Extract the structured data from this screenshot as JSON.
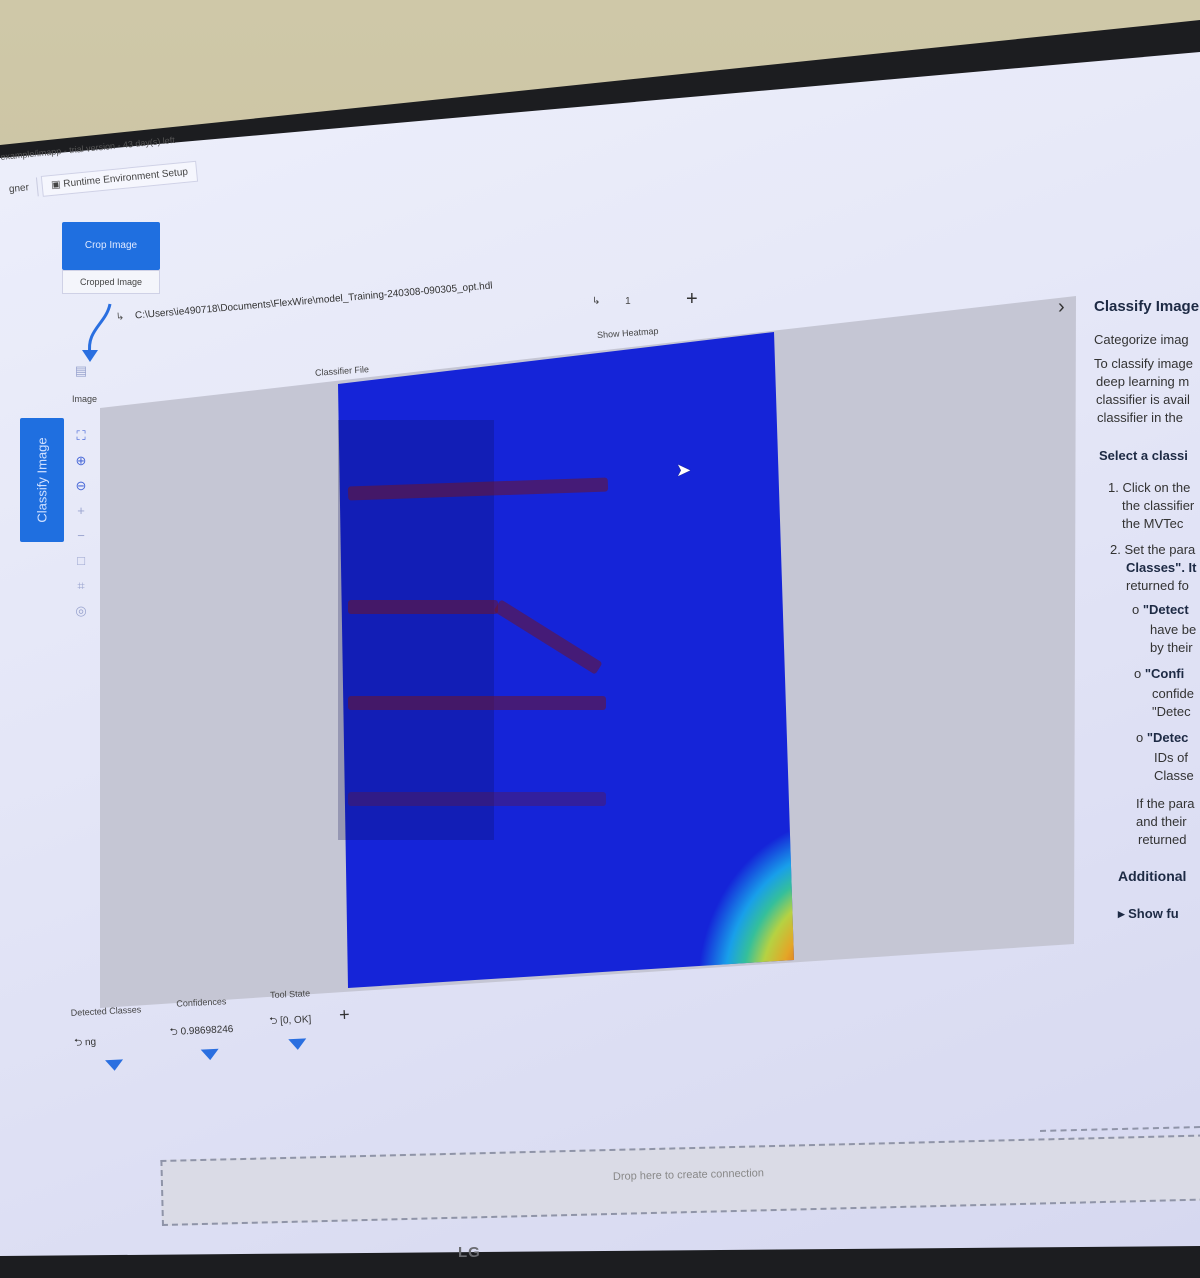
{
  "window": {
    "title": "example/imapp - trial version - 43 day(s) left",
    "tabs": [
      "gner",
      "Runtime Environment Setup"
    ]
  },
  "crop_node": {
    "button_label": "Crop Image",
    "output_label": "Cropped Image"
  },
  "classify_node": {
    "vertical_label": "Classify Image"
  },
  "image_label": "Image",
  "classifier_file": {
    "path": "C:\\Users\\ie490718\\Documents\\FlexWire\\model_Training-240308-090305_opt.hdl",
    "label": "Classifier File"
  },
  "heatmap": {
    "value": "1",
    "label": "Show Heatmap"
  },
  "outputs": [
    {
      "label": "Detected Classes",
      "value": "ng"
    },
    {
      "label": "Confidences",
      "value": "0.98698246"
    },
    {
      "label": "Tool State",
      "value": "[0, OK]"
    }
  ],
  "help_panel": {
    "title": "Classify Image",
    "intro": "Categorize imag",
    "lines": [
      "To classify image",
      "deep learning m",
      "classifier is avail",
      "classifier in the"
    ],
    "section_title": "Select a classi",
    "steps": [
      [
        "1. Click on the",
        "the classifier",
        "the MVTec"
      ],
      [
        "2. Set the para",
        "Classes\". It",
        "returned fo"
      ]
    ],
    "bullets": [
      [
        "\"Detect",
        "have be",
        "by their"
      ],
      [
        "\"Confi",
        "confide",
        "\"Detec"
      ],
      [
        "\"Detec",
        "IDs of",
        "Classe"
      ]
    ],
    "tail": [
      "If the para",
      "and their",
      "returned"
    ],
    "additional": "Additional",
    "show_more": "Show fu"
  },
  "dropzone": {
    "text": "Drop here to create connection"
  },
  "monitor_brand": "LG",
  "colors": {
    "accent": "#1f6fe0",
    "heatmap_bg": "#1524d8"
  }
}
